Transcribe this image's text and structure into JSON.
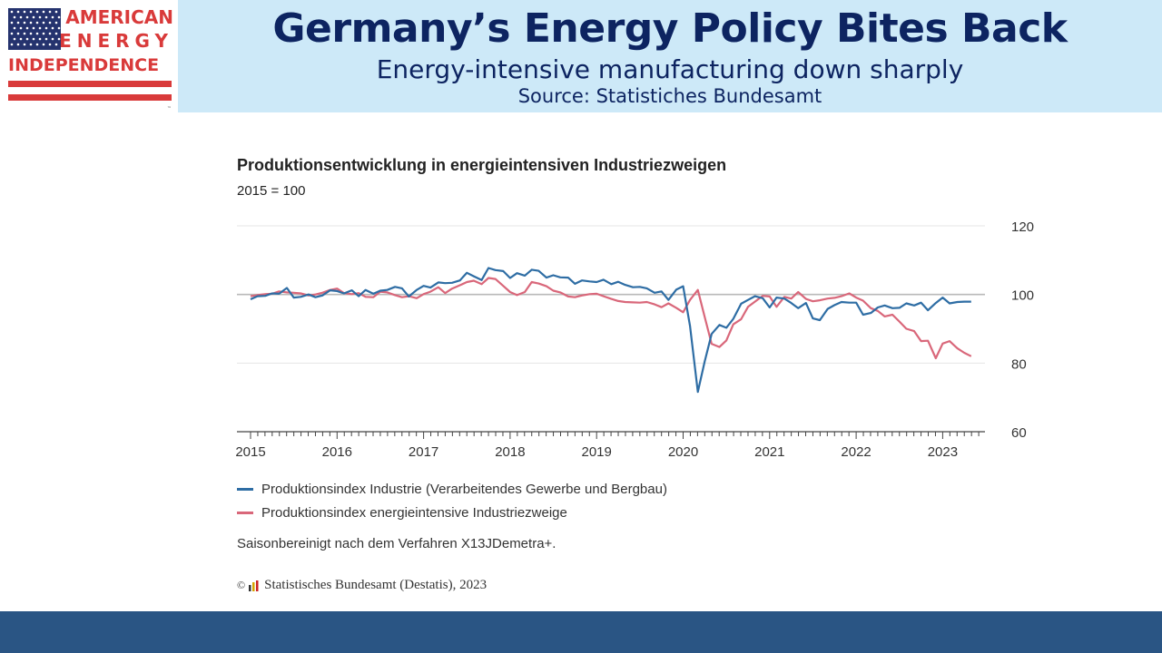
{
  "logo": {
    "line1": "AMERICAN",
    "line2": "ENERGY",
    "line3": "INDEPENDENCE",
    "tm": "™",
    "colors": {
      "red": "#d93a3a",
      "blue": "#25336e"
    }
  },
  "header": {
    "title": "Germany’s Energy Policy Bites Back",
    "subtitle": "Energy-intensive manufacturing down sharply",
    "source": "Source: Statistiches Bundesamt"
  },
  "chart_data": {
    "type": "line",
    "title": "Produktionsentwicklung in energieintensiven Industriezweigen",
    "subtitle": "2015 = 100",
    "ylim": [
      60,
      120
    ],
    "yticks": [
      60,
      80,
      100,
      120
    ],
    "xlim": [
      2015.0,
      2023.45
    ],
    "xticks": [
      "2015",
      "2016",
      "2017",
      "2018",
      "2019",
      "2020",
      "2021",
      "2022",
      "2023"
    ],
    "grid": true,
    "reference_line": 100,
    "series": [
      {
        "name": "Produktionsindex Industrie (Verarbeitendes Gewerbe und Bergbau)",
        "color": "#2e6da4",
        "x": [
          2015.0,
          2015.08,
          2015.17,
          2015.25,
          2015.33,
          2015.42,
          2015.5,
          2015.58,
          2015.67,
          2015.75,
          2015.83,
          2015.92,
          2016.0,
          2016.08,
          2016.17,
          2016.25,
          2016.33,
          2016.42,
          2016.5,
          2016.58,
          2016.67,
          2016.75,
          2016.83,
          2016.92,
          2017.0,
          2017.08,
          2017.17,
          2017.25,
          2017.33,
          2017.42,
          2017.5,
          2017.58,
          2017.67,
          2017.75,
          2017.83,
          2017.92,
          2018.0,
          2018.08,
          2018.17,
          2018.25,
          2018.33,
          2018.42,
          2018.5,
          2018.58,
          2018.67,
          2018.75,
          2018.83,
          2018.92,
          2019.0,
          2019.08,
          2019.17,
          2019.25,
          2019.33,
          2019.42,
          2019.5,
          2019.58,
          2019.67,
          2019.75,
          2019.83,
          2019.92,
          2020.0,
          2020.08,
          2020.17,
          2020.25,
          2020.33,
          2020.42,
          2020.5,
          2020.58,
          2020.67,
          2020.75,
          2020.83,
          2020.92,
          2021.0,
          2021.08,
          2021.17,
          2021.25,
          2021.33,
          2021.42,
          2021.5,
          2021.58,
          2021.67,
          2021.75,
          2021.83,
          2021.92,
          2022.0,
          2022.08,
          2022.17,
          2022.25,
          2022.33,
          2022.42,
          2022.5,
          2022.58,
          2022.67,
          2022.75,
          2022.83,
          2022.92,
          2023.0,
          2023.08,
          2023.17,
          2023.25,
          2023.33
        ],
        "values": [
          98.6,
          99.5,
          99.6,
          100.3,
          100.2,
          101.9,
          99.1,
          99.3,
          100.0,
          99.2,
          99.7,
          101.2,
          101.0,
          100.3,
          101.2,
          99.5,
          101.3,
          100.2,
          101.1,
          101.3,
          102.2,
          101.8,
          99.4,
          101.3,
          102.5,
          102.0,
          103.5,
          103.3,
          103.4,
          104.1,
          106.3,
          105.3,
          104.2,
          107.7,
          107.1,
          106.8,
          104.8,
          106.2,
          105.5,
          107.2,
          106.9,
          104.9,
          105.6,
          105.0,
          104.9,
          103.1,
          104.1,
          103.8,
          103.6,
          104.3,
          103.0,
          103.7,
          102.8,
          102.1,
          102.2,
          101.8,
          100.5,
          100.9,
          98.4,
          101.4,
          102.4,
          90.8,
          71.6,
          80.5,
          88.5,
          91.1,
          90.3,
          92.9,
          97.3,
          98.4,
          99.5,
          98.9,
          96.2,
          99.1,
          98.8,
          97.5,
          96.0,
          97.5,
          93.0,
          92.5,
          95.8,
          96.9,
          97.8,
          97.6,
          97.6,
          94.1,
          94.6,
          96.2,
          96.8,
          96.0,
          96.1,
          97.4,
          96.8,
          97.6,
          95.4,
          97.5,
          99.1,
          97.4,
          97.8,
          97.9,
          97.9
        ]
      },
      {
        "name": "Produktionsindex energieintensive Industriezweige",
        "color": "#d9677a",
        "x": [
          2015.0,
          2015.08,
          2015.17,
          2015.25,
          2015.33,
          2015.42,
          2015.5,
          2015.58,
          2015.67,
          2015.75,
          2015.83,
          2015.92,
          2016.0,
          2016.08,
          2016.17,
          2016.25,
          2016.33,
          2016.42,
          2016.5,
          2016.58,
          2016.67,
          2016.75,
          2016.83,
          2016.92,
          2017.0,
          2017.08,
          2017.17,
          2017.25,
          2017.33,
          2017.42,
          2017.5,
          2017.58,
          2017.67,
          2017.75,
          2017.83,
          2017.92,
          2018.0,
          2018.08,
          2018.17,
          2018.25,
          2018.33,
          2018.42,
          2018.5,
          2018.58,
          2018.67,
          2018.75,
          2018.83,
          2018.92,
          2019.0,
          2019.08,
          2019.17,
          2019.25,
          2019.33,
          2019.42,
          2019.5,
          2019.58,
          2019.67,
          2019.75,
          2019.83,
          2019.92,
          2020.0,
          2020.08,
          2020.17,
          2020.25,
          2020.33,
          2020.42,
          2020.5,
          2020.58,
          2020.67,
          2020.75,
          2020.83,
          2020.92,
          2021.0,
          2021.08,
          2021.17,
          2021.25,
          2021.33,
          2021.42,
          2021.5,
          2021.58,
          2021.67,
          2021.75,
          2021.83,
          2021.92,
          2022.0,
          2022.08,
          2022.17,
          2022.25,
          2022.33,
          2022.42,
          2022.5,
          2022.58,
          2022.67,
          2022.75,
          2022.83,
          2022.92,
          2023.0,
          2023.08,
          2023.17,
          2023.25,
          2023.33
        ],
        "values": [
          99.5,
          99.8,
          100.1,
          100.2,
          100.9,
          100.6,
          100.5,
          100.3,
          99.7,
          100.0,
          100.5,
          101.3,
          101.7,
          100.4,
          100.1,
          100.4,
          99.3,
          99.2,
          100.8,
          100.6,
          99.8,
          99.2,
          99.5,
          98.9,
          100.1,
          100.8,
          102.1,
          100.4,
          101.7,
          102.7,
          103.6,
          104.0,
          103.0,
          104.8,
          104.5,
          102.5,
          100.7,
          99.8,
          100.7,
          103.6,
          103.2,
          102.4,
          101.1,
          100.6,
          99.4,
          99.2,
          99.7,
          100.1,
          100.2,
          99.5,
          98.7,
          98.1,
          97.8,
          97.7,
          97.6,
          97.8,
          97.1,
          96.3,
          97.4,
          96.1,
          94.8,
          98.4,
          101.3,
          93.4,
          85.6,
          84.7,
          86.6,
          91.3,
          92.8,
          96.4,
          97.9,
          99.6,
          99.4,
          96.4,
          99.3,
          98.8,
          100.7,
          98.7,
          98.0,
          98.3,
          98.8,
          99.0,
          99.5,
          100.3,
          99.1,
          98.2,
          96.0,
          95.2,
          93.6,
          94.1,
          92.1,
          90.0,
          89.3,
          86.4,
          86.5,
          81.4,
          85.7,
          86.4,
          84.3,
          83.0,
          82.0
        ]
      }
    ]
  },
  "note": "Saisonbereinigt nach dem Verfahren X13JDemetra+.",
  "copyright": "Statistisches Bundesamt (Destatis), 2023"
}
